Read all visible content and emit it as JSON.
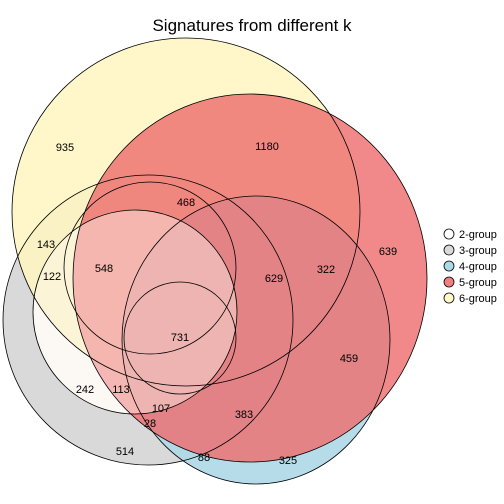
{
  "title": "Signatures from different k",
  "sets": [
    {
      "key": "2",
      "label": "2-group",
      "color": "#ffffff"
    },
    {
      "key": "3",
      "label": "3-group",
      "color": "#d9d9d9"
    },
    {
      "key": "4",
      "label": "4-group",
      "color": "#add8e6"
    },
    {
      "key": "5",
      "label": "5-group",
      "color": "#f08080"
    },
    {
      "key": "6",
      "label": "6-group",
      "color": "#fff8c8"
    }
  ],
  "region_counts": [
    {
      "value": "935"
    },
    {
      "value": "1180"
    },
    {
      "value": "639"
    },
    {
      "value": "468"
    },
    {
      "value": "143"
    },
    {
      "value": "548"
    },
    {
      "value": "322"
    },
    {
      "value": "122"
    },
    {
      "value": "629"
    },
    {
      "value": "731"
    },
    {
      "value": "459"
    },
    {
      "value": "242"
    },
    {
      "value": "113"
    },
    {
      "value": "107"
    },
    {
      "value": "28"
    },
    {
      "value": "383"
    },
    {
      "value": "514"
    },
    {
      "value": "88"
    },
    {
      "value": "325"
    }
  ]
}
